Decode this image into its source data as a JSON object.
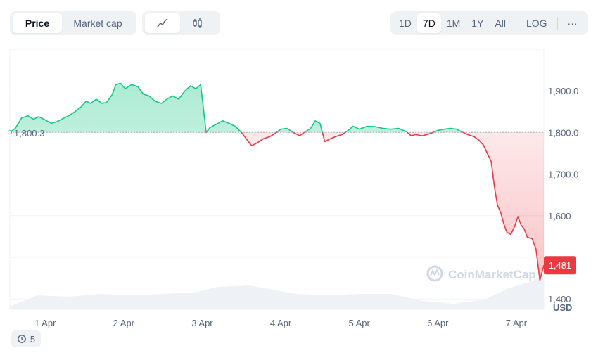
{
  "toolbar": {
    "type_tabs": [
      "Price",
      "Market cap"
    ],
    "range_tabs": [
      "1D",
      "7D",
      "1M",
      "1Y",
      "All"
    ],
    "log_label": "LOG",
    "more_label": "···",
    "style_icons": [
      "line-chart-icon",
      "candlestick-icon"
    ]
  },
  "watermark": "CoinMarketCap",
  "history_badge": {
    "count": "5"
  },
  "colors": {
    "up": "#16c784",
    "down": "#ea3943",
    "grid": "#eff2f5",
    "reference": "#a6b0c3"
  },
  "chart_data": {
    "type": "line",
    "reference_value": 1800.3,
    "reference_label": "1,800.3",
    "current_label": "1,481",
    "y_unit": "USD",
    "ylim": [
      1375,
      2000
    ],
    "y_ticks": [
      1400,
      1500,
      1600,
      1700,
      1800,
      1900
    ],
    "y_tick_labels": [
      "1,400",
      "1,600",
      "1,700.0",
      "1,800.0",
      "1,900.0"
    ],
    "y_tick_label_values": [
      1400,
      1600,
      1700,
      1800,
      1900
    ],
    "x_range": [
      0.55,
      7.35
    ],
    "x_ticks": [
      1,
      2,
      3,
      4,
      5,
      6,
      7
    ],
    "x_tick_labels": [
      "1 Apr",
      "2 Apr",
      "3 Apr",
      "4 Apr",
      "5 Apr",
      "6 Apr",
      "7 Apr"
    ],
    "series": [
      {
        "points": [
          [
            0.55,
            1800
          ],
          [
            0.62,
            1810
          ],
          [
            0.7,
            1835
          ],
          [
            0.78,
            1840
          ],
          [
            0.85,
            1832
          ],
          [
            0.92,
            1838
          ],
          [
            1.0,
            1830
          ],
          [
            1.08,
            1822
          ],
          [
            1.15,
            1826
          ],
          [
            1.22,
            1833
          ],
          [
            1.3,
            1840
          ],
          [
            1.38,
            1850
          ],
          [
            1.46,
            1862
          ],
          [
            1.52,
            1875
          ],
          [
            1.58,
            1870
          ],
          [
            1.65,
            1880
          ],
          [
            1.72,
            1870
          ],
          [
            1.78,
            1872
          ],
          [
            1.85,
            1890
          ],
          [
            1.9,
            1915
          ],
          [
            1.96,
            1918
          ],
          [
            2.02,
            1905
          ],
          [
            2.1,
            1915
          ],
          [
            2.18,
            1910
          ],
          [
            2.25,
            1892
          ],
          [
            2.32,
            1888
          ],
          [
            2.4,
            1875
          ],
          [
            2.48,
            1870
          ],
          [
            2.55,
            1880
          ],
          [
            2.62,
            1888
          ],
          [
            2.7,
            1880
          ],
          [
            2.78,
            1900
          ],
          [
            2.85,
            1912
          ],
          [
            2.92,
            1905
          ],
          [
            2.98,
            1915
          ],
          [
            3.02,
            1850
          ],
          [
            3.05,
            1800
          ],
          [
            3.1,
            1812
          ],
          [
            3.18,
            1820
          ],
          [
            3.26,
            1828
          ],
          [
            3.34,
            1822
          ],
          [
            3.42,
            1815
          ],
          [
            3.5,
            1800
          ],
          [
            3.58,
            1780
          ],
          [
            3.63,
            1768
          ],
          [
            3.7,
            1775
          ],
          [
            3.78,
            1785
          ],
          [
            3.86,
            1790
          ],
          [
            3.93,
            1798
          ],
          [
            4.0,
            1808
          ],
          [
            4.08,
            1810
          ],
          [
            4.16,
            1800
          ],
          [
            4.24,
            1792
          ],
          [
            4.3,
            1800
          ],
          [
            4.38,
            1810
          ],
          [
            4.44,
            1828
          ],
          [
            4.5,
            1822
          ],
          [
            4.56,
            1778
          ],
          [
            4.62,
            1784
          ],
          [
            4.7,
            1790
          ],
          [
            4.78,
            1795
          ],
          [
            4.86,
            1805
          ],
          [
            4.92,
            1815
          ],
          [
            5.0,
            1808
          ],
          [
            5.1,
            1815
          ],
          [
            5.2,
            1814
          ],
          [
            5.3,
            1810
          ],
          [
            5.4,
            1808
          ],
          [
            5.5,
            1810
          ],
          [
            5.6,
            1802
          ],
          [
            5.66,
            1792
          ],
          [
            5.72,
            1795
          ],
          [
            5.8,
            1792
          ],
          [
            5.88,
            1796
          ],
          [
            5.94,
            1800
          ],
          [
            6.0,
            1805
          ],
          [
            6.08,
            1808
          ],
          [
            6.16,
            1810
          ],
          [
            6.24,
            1808
          ],
          [
            6.3,
            1802
          ],
          [
            6.38,
            1795
          ],
          [
            6.46,
            1790
          ],
          [
            6.52,
            1782
          ],
          [
            6.58,
            1770
          ],
          [
            6.63,
            1750
          ],
          [
            6.68,
            1730
          ],
          [
            6.72,
            1670
          ],
          [
            6.76,
            1625
          ],
          [
            6.8,
            1608
          ],
          [
            6.84,
            1580
          ],
          [
            6.88,
            1560
          ],
          [
            6.93,
            1555
          ],
          [
            6.98,
            1575
          ],
          [
            7.02,
            1598
          ],
          [
            7.06,
            1578
          ],
          [
            7.1,
            1568
          ],
          [
            7.14,
            1548
          ],
          [
            7.2,
            1545
          ],
          [
            7.25,
            1520
          ],
          [
            7.3,
            1445
          ],
          [
            7.35,
            1481
          ]
        ]
      }
    ]
  }
}
